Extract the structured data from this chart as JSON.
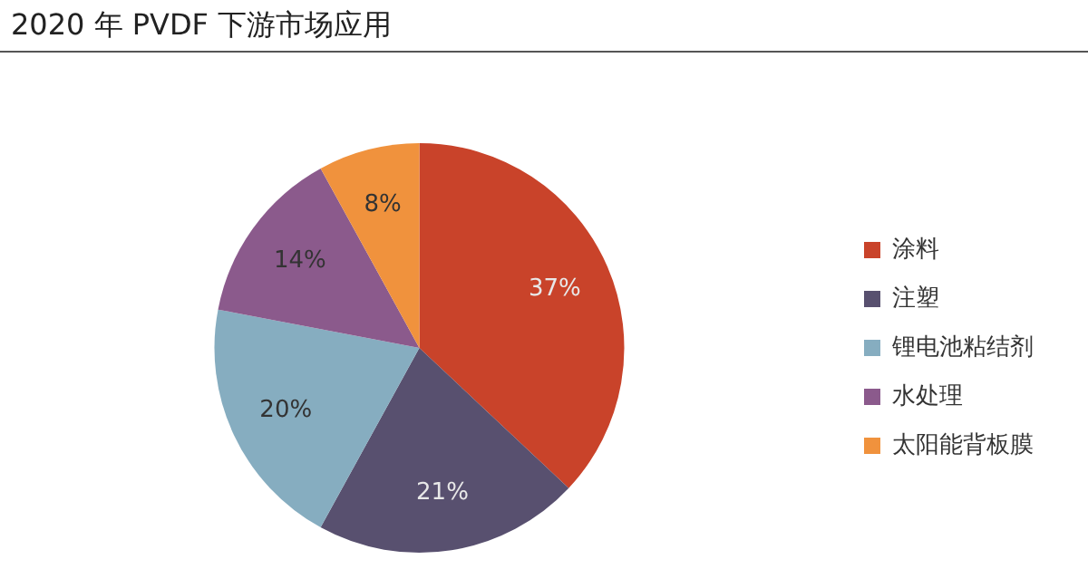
{
  "chart_data": {
    "type": "pie",
    "title": "2020 年 PVDF 下游市场应用",
    "categories": [
      "涂料",
      "注塑",
      "锂电池粘结剂",
      "水处理",
      "太阳能背板膜"
    ],
    "values": [
      37,
      21,
      20,
      14,
      8
    ],
    "colors": [
      "#c9432a",
      "#58506f",
      "#86adc0",
      "#8b5a8c",
      "#f0923d"
    ],
    "value_labels": [
      "37%",
      "21%",
      "20%",
      "14%",
      "8%"
    ],
    "legend": "right"
  }
}
